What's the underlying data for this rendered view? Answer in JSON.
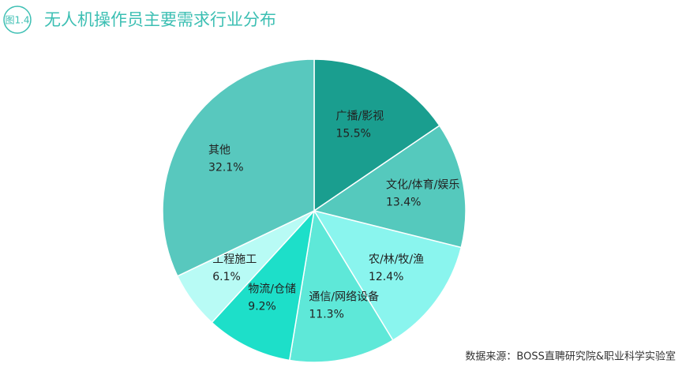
{
  "chart_data": {
    "type": "pie",
    "figure_label": "图1.4",
    "title": "无人机操作员主要需求行业分布",
    "categories": [
      "广播/影视",
      "文化/体育/娱乐",
      "农/林/牧/渔",
      "通信/网络设备",
      "物流/仓储",
      "工程施工",
      "其他"
    ],
    "values": [
      15.5,
      13.4,
      12.4,
      11.3,
      9.2,
      6.1,
      32.1
    ],
    "value_labels": [
      "15.5%",
      "13.4%",
      "12.4%",
      "11.3%",
      "9.2%",
      "6.1%",
      "32.1%"
    ],
    "colors": [
      "#1a9e8f",
      "#55c9bd",
      "#8af5ee",
      "#5ee8d8",
      "#1ddfc9",
      "#b8fbf5",
      "#58c8be"
    ],
    "source": "数据来源：BOSS直聘研究院&职业科学实验室"
  }
}
